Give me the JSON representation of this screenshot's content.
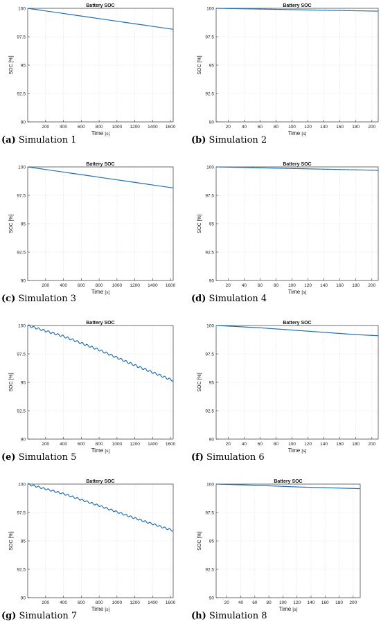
{
  "chart_data": [
    {
      "type": "line",
      "title": "Battery SOC",
      "xlabel": "Time",
      "xunit": "[s]",
      "ylabel": "SOC [%]",
      "xlim": [
        0,
        1630
      ],
      "ylim": [
        90,
        100
      ],
      "xticks": [
        200,
        400,
        600,
        800,
        1000,
        1200,
        1400,
        1600
      ],
      "yticks": [
        90,
        92.5,
        95,
        97.5,
        100
      ],
      "yticklabels": [
        "90",
        "92.5",
        "95",
        "97.5",
        "100"
      ],
      "grid": true,
      "series": [
        {
          "x": [
            0,
            1630
          ],
          "y": [
            100,
            98.15
          ]
        }
      ],
      "caption_label": "(a)",
      "caption_text": "Simulation 1"
    },
    {
      "type": "line",
      "title": "Battery SOC",
      "xlabel": "Time",
      "xunit": "[s]",
      "ylabel": "SOC [%]",
      "xlim": [
        5,
        208
      ],
      "ylim": [
        90,
        100
      ],
      "xticks": [
        20,
        40,
        60,
        80,
        100,
        120,
        140,
        160,
        180,
        200
      ],
      "yticks": [
        90,
        92.5,
        95,
        97.5,
        100
      ],
      "yticklabels": [
        "90",
        "92.5",
        "95",
        "97.5",
        "100"
      ],
      "grid": true,
      "series": [
        {
          "x": [
            5,
            208
          ],
          "y": [
            100,
            99.75
          ]
        }
      ],
      "caption_label": "(b)",
      "caption_text": "Simulation 2"
    },
    {
      "type": "line",
      "title": "Battery SOC",
      "xlabel": "Time",
      "xunit": "[s]",
      "ylabel": "SOC [%]",
      "xlim": [
        0,
        1630
      ],
      "ylim": [
        90,
        100
      ],
      "xticks": [
        200,
        400,
        600,
        800,
        1000,
        1200,
        1400,
        1600
      ],
      "yticks": [
        90,
        92.5,
        95,
        97.5,
        100
      ],
      "yticklabels": [
        "90",
        "92.5",
        "95",
        "97.5",
        "100"
      ],
      "grid": true,
      "series": [
        {
          "x": [
            0,
            1630
          ],
          "y": [
            100,
            98.15
          ]
        }
      ],
      "caption_label": "(c)",
      "caption_text": "Simulation 3"
    },
    {
      "type": "line",
      "title": "Battery SOC",
      "xlabel": "Time",
      "xunit": "[s]",
      "ylabel": "SOC [%]",
      "xlim": [
        5,
        208
      ],
      "ylim": [
        90,
        100
      ],
      "xticks": [
        20,
        40,
        60,
        80,
        100,
        120,
        140,
        160,
        180,
        200
      ],
      "yticks": [
        90,
        92.5,
        95,
        97.5,
        100
      ],
      "yticklabels": [
        "90",
        "92.5",
        "95",
        "97.5",
        "100"
      ],
      "grid": true,
      "series": [
        {
          "x": [
            5,
            208
          ],
          "y": [
            100,
            99.7
          ]
        }
      ],
      "caption_label": "(d)",
      "caption_text": "Simulation 4"
    },
    {
      "type": "line",
      "title": "Battery SOC",
      "xlabel": "Time",
      "xunit": "[s]",
      "ylabel": "SOC [%]",
      "xlim": [
        0,
        1630
      ],
      "ylim": [
        90,
        100
      ],
      "xticks": [
        200,
        400,
        600,
        800,
        1000,
        1200,
        1400,
        1600
      ],
      "yticks": [
        90,
        92.5,
        95,
        97.5,
        100
      ],
      "yticklabels": [
        "90",
        "92.5",
        "95",
        "97.5",
        "100"
      ],
      "grid": true,
      "series": [
        {
          "x": [
            0,
            400,
            800,
            1200,
            1630
          ],
          "y": [
            100,
            99.05,
            97.85,
            96.5,
            95.15
          ]
        }
      ],
      "caption_label": "(e)",
      "caption_text": "Simulation 5"
    },
    {
      "type": "line",
      "title": "Battery SOC",
      "xlabel": "Time",
      "xunit": "[s]",
      "ylabel": "SOC [%]",
      "xlim": [
        5,
        208
      ],
      "ylim": [
        90,
        100
      ],
      "xticks": [
        20,
        40,
        60,
        80,
        100,
        120,
        140,
        160,
        180,
        200
      ],
      "yticks": [
        90,
        92.5,
        95,
        97.5,
        100
      ],
      "yticklabels": [
        "90",
        "92.5",
        "95",
        "97.5",
        "100"
      ],
      "grid": true,
      "series": [
        {
          "x": [
            5,
            60,
            120,
            180,
            208
          ],
          "y": [
            100,
            99.8,
            99.5,
            99.2,
            99.1
          ]
        }
      ],
      "caption_label": "(f)",
      "caption_text": "Simulation 6"
    },
    {
      "type": "line",
      "title": "Battery SOC",
      "xlabel": "Time",
      "xunit": "[s]",
      "ylabel": "SOC [%]",
      "xlim": [
        0,
        1630
      ],
      "ylim": [
        90,
        100
      ],
      "xticks": [
        200,
        400,
        600,
        800,
        1000,
        1200,
        1400,
        1600
      ],
      "yticks": [
        90,
        92.5,
        95,
        97.5,
        100
      ],
      "yticklabels": [
        "90",
        "92.5",
        "95",
        "97.5",
        "100"
      ],
      "grid": true,
      "series": [
        {
          "x": [
            0,
            400,
            800,
            1200,
            1630
          ],
          "y": [
            100,
            99.15,
            98.1,
            97.0,
            95.9
          ]
        }
      ],
      "caption_label": "(g)",
      "caption_text": "Simulation 7"
    },
    {
      "type": "line",
      "title": "Battery SOC",
      "xlabel": "Time",
      "xunit": "[s]",
      "ylabel": "SOC [%]",
      "xlim": [
        5,
        210
      ],
      "ylim": [
        90,
        100
      ],
      "xticks": [
        20,
        40,
        60,
        80,
        100,
        120,
        140,
        160,
        180,
        200
      ],
      "yticks": [
        90,
        92.5,
        95,
        97.5,
        100
      ],
      "yticklabels": [
        "90",
        "92.5",
        "95",
        "97.5",
        "100"
      ],
      "grid": true,
      "series": [
        {
          "x": [
            5,
            60,
            120,
            180,
            210
          ],
          "y": [
            100,
            99.9,
            99.75,
            99.65,
            99.6
          ]
        }
      ],
      "caption_label": "(h)",
      "caption_text": "Simulation 8"
    }
  ],
  "style": {
    "line_color": "#1f6fb4",
    "grid_color": "#dedede",
    "axis_color": "#333333"
  }
}
